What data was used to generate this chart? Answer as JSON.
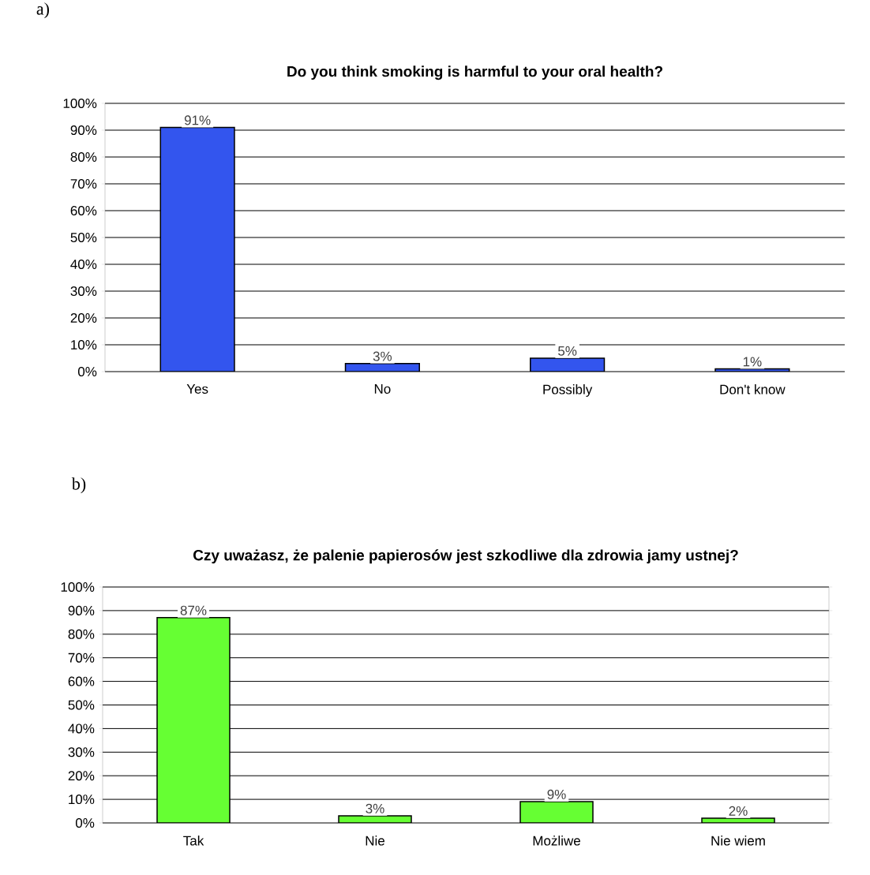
{
  "chart_data": [
    {
      "type": "bar",
      "title": "Do you think smoking is harmful to your oral health?",
      "annotations": [
        "a)"
      ],
      "categories": [
        "Yes",
        "No",
        "Possibly",
        "Don't know"
      ],
      "values": [
        91,
        3,
        5,
        1
      ],
      "value_labels": [
        "91%",
        "3%",
        "5%",
        "1%"
      ],
      "color": "#3355ee",
      "ylim": [
        0,
        100
      ],
      "yticks": [
        {
          "value": 0,
          "label": "0%"
        },
        {
          "value": 10,
          "label": "10%"
        },
        {
          "value": 20,
          "label": "20%"
        },
        {
          "value": 30,
          "label": "30%"
        },
        {
          "value": 40,
          "label": "40%"
        },
        {
          "value": 50,
          "label": "50%"
        },
        {
          "value": 60,
          "label": "60%"
        },
        {
          "value": 70,
          "label": "70%"
        },
        {
          "value": 80,
          "label": "80%"
        },
        {
          "value": 90,
          "label": "90%"
        },
        {
          "value": 100,
          "label": "100%"
        }
      ],
      "grid": "y"
    },
    {
      "type": "bar",
      "title": "Czy uważasz, że palenie papierosów jest szkodliwe dla zdrowia jamy ustnej?",
      "annotations": [
        "b)"
      ],
      "categories": [
        "Tak",
        "Nie",
        "Możliwe",
        "Nie wiem"
      ],
      "values": [
        87,
        3,
        9,
        2
      ],
      "value_labels": [
        "87%",
        "3%",
        "9%",
        "2%"
      ],
      "color": "#66ff33",
      "ylim": [
        0,
        100
      ],
      "yticks": [
        {
          "value": 0,
          "label": "0%"
        },
        {
          "value": 10,
          "label": "10%"
        },
        {
          "value": 20,
          "label": "20%"
        },
        {
          "value": 30,
          "label": "30%"
        },
        {
          "value": 40,
          "label": "40%"
        },
        {
          "value": 50,
          "label": "50%"
        },
        {
          "value": 60,
          "label": "60%"
        },
        {
          "value": 70,
          "label": "70%"
        },
        {
          "value": 80,
          "label": "80%"
        },
        {
          "value": 90,
          "label": "90%"
        },
        {
          "value": 100,
          "label": "100%"
        }
      ],
      "grid": "y"
    }
  ]
}
